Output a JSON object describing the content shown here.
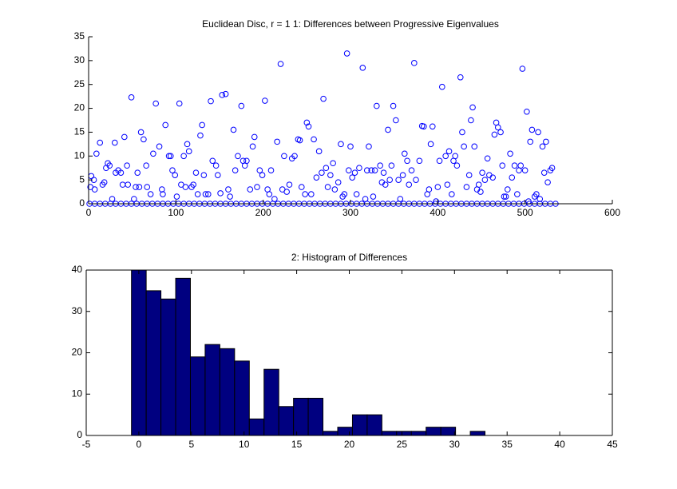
{
  "chart_data": [
    {
      "type": "scatter",
      "title": "Euclidean Disc, r = 1 1: Differences between Progressive Eigenvalues",
      "color": "#0000ff",
      "xlim": [
        0,
        600
      ],
      "ylim": [
        0,
        35
      ],
      "xticks": [
        0,
        100,
        200,
        300,
        400,
        500,
        600
      ],
      "yticks": [
        0,
        5,
        10,
        15,
        20,
        25,
        30,
        35
      ],
      "x": [
        2,
        3,
        6,
        7,
        9,
        13,
        16,
        18,
        20,
        22,
        24,
        27,
        30,
        31,
        34,
        37,
        39,
        41,
        44,
        45,
        49,
        52,
        54,
        56,
        58,
        60,
        63,
        66,
        67,
        71,
        74,
        77,
        81,
        84,
        85,
        88,
        92,
        94,
        96,
        99,
        101,
        104,
        106,
        109,
        111,
        113,
        115,
        118,
        120,
        123,
        125,
        128,
        130,
        132,
        134,
        137,
        140,
        142,
        146,
        148,
        151,
        153,
        157,
        160,
        162,
        166,
        168,
        171,
        175,
        177,
        179,
        181,
        185,
        188,
        190,
        193,
        196,
        199,
        202,
        205,
        207,
        209,
        213,
        216,
        220,
        222,
        224,
        227,
        230,
        233,
        236,
        240,
        242,
        244,
        248,
        250,
        252,
        255,
        258,
        261,
        264,
        267,
        269,
        272,
        274,
        277,
        280,
        282,
        286,
        289,
        291,
        293,
        296,
        298,
        300,
        302,
        305,
        307,
        310,
        314,
        317,
        319,
        321,
        324,
        326,
        328,
        330,
        334,
        336,
        338,
        340,
        343,
        345,
        347,
        349,
        352,
        355,
        357,
        360,
        362,
        365,
        367,
        370,
        373,
        375,
        379,
        382,
        384,
        388,
        390,
        392,
        394,
        398,
        400,
        402,
        405,
        409,
        411,
        413,
        416,
        418,
        420,
        422,
        426,
        428,
        430,
        433,
        436,
        438,
        440,
        442,
        445,
        447,
        449,
        451,
        454,
        457,
        459,
        463,
        465,
        467,
        469,
        472,
        474,
        476,
        478,
        480,
        483,
        485,
        488,
        491,
        493,
        495,
        497,
        500,
        502,
        504,
        506,
        508,
        511,
        513,
        515,
        517,
        520,
        522,
        524,
        526,
        529,
        531,
        1,
        7,
        13,
        19,
        25,
        31,
        37,
        43,
        49,
        55,
        61,
        67,
        73,
        79,
        85,
        91,
        97,
        103,
        109,
        115,
        121,
        127,
        133,
        139,
        145,
        151,
        157,
        163,
        169,
        175,
        181,
        187,
        193,
        199,
        205,
        211,
        217,
        223,
        229,
        235,
        241,
        247,
        253,
        259,
        265,
        271,
        277,
        283,
        289,
        295,
        301,
        307,
        313,
        319,
        325,
        331,
        337,
        343,
        349,
        355,
        361,
        367,
        373,
        379,
        385,
        391,
        397,
        403,
        409,
        415,
        421,
        427,
        433,
        439,
        445,
        451,
        457,
        463,
        469,
        475,
        481,
        487,
        493,
        499,
        505,
        511,
        517,
        523,
        529,
        535
      ],
      "values": [
        3.5,
        5.8,
        5,
        3,
        10.5,
        12.8,
        4,
        4.5,
        7.5,
        8.5,
        8,
        1,
        12.8,
        6.5,
        7,
        6.5,
        4,
        14,
        8,
        4,
        22.3,
        1,
        3.5,
        6.5,
        3.5,
        15,
        13.5,
        8,
        3.5,
        2,
        10.5,
        21,
        12,
        3,
        2,
        16.5,
        10,
        10,
        7,
        6,
        1.5,
        21,
        4,
        10,
        3.5,
        12.5,
        11,
        3.5,
        4,
        6.5,
        2,
        14.3,
        16.5,
        6,
        2,
        2,
        21.5,
        9,
        8,
        6,
        2.2,
        22.8,
        23,
        3,
        1.5,
        15.5,
        7,
        10,
        20.5,
        9,
        8,
        9,
        3,
        12,
        14,
        3.5,
        7,
        6,
        21.6,
        3,
        2,
        7,
        1,
        13,
        29.3,
        3,
        10,
        2.5,
        4,
        9.5,
        10,
        13.5,
        13.3,
        3.5,
        2,
        17,
        16.2,
        2,
        13.5,
        5.5,
        11,
        6.5,
        22,
        7.5,
        3.5,
        6,
        8.5,
        3,
        4.5,
        12.5,
        1.5,
        2,
        31.5,
        7,
        12,
        5.5,
        6.5,
        2,
        7.5,
        28.5,
        1,
        7,
        12,
        7,
        1.5,
        7,
        20.5,
        8,
        4.5,
        6.5,
        4,
        15.5,
        5,
        8,
        20.5,
        17.5,
        5,
        1,
        6,
        10.5,
        9,
        4,
        7,
        29.5,
        5,
        9,
        16.3,
        16.2,
        2,
        3,
        12.5,
        16.2,
        0.5,
        3.5,
        9,
        24.5,
        10,
        4,
        11,
        2,
        9,
        10,
        8,
        26.5,
        15,
        12,
        3.5,
        6,
        17.5,
        20.2,
        12,
        3,
        4,
        2.5,
        6.5,
        5,
        9.5,
        6,
        5.5,
        14.5,
        17,
        16,
        15,
        8,
        1.5,
        1.5,
        3,
        10.5,
        5.5,
        8,
        2,
        7,
        8,
        28.3,
        7,
        19.3,
        0.5,
        13,
        15.5,
        1.5,
        2,
        15,
        1,
        12,
        6.5,
        13,
        4.5,
        7,
        7.5,
        0,
        0,
        0,
        0,
        0,
        0,
        0,
        0,
        0,
        0,
        0,
        0,
        0,
        0,
        0,
        0,
        0,
        0,
        0,
        0,
        0,
        0,
        0,
        0,
        0,
        0,
        0,
        0,
        0,
        0,
        0,
        0,
        0,
        0,
        0,
        0,
        0,
        0,
        0,
        0,
        0,
        0,
        0,
        0,
        0,
        0,
        0,
        0,
        0,
        0,
        0,
        0,
        0,
        0,
        0,
        0,
        0,
        0,
        0,
        0,
        0,
        0,
        0,
        0,
        0,
        0,
        0,
        0,
        0,
        0,
        0,
        0,
        0,
        0,
        0,
        0,
        0,
        0,
        0,
        0,
        0,
        0,
        0,
        0,
        0,
        0,
        0,
        0,
        0,
        0
      ]
    },
    {
      "type": "histogram",
      "title": "2: Histogram of Differences",
      "color": "#000080",
      "xlim": [
        -5,
        45
      ],
      "ylim": [
        0,
        40
      ],
      "xticks": [
        -5,
        0,
        5,
        10,
        15,
        20,
        25,
        30,
        35,
        40,
        45
      ],
      "yticks": [
        0,
        10,
        20,
        30,
        40
      ],
      "bins": [
        -0.7,
        0.7,
        2.1,
        3.5,
        4.9,
        6.3,
        7.7,
        9.1,
        10.5,
        11.9,
        13.3,
        14.7,
        16.1,
        17.5,
        18.9,
        20.3,
        21.7,
        23.1,
        24.5,
        25.9,
        27.3,
        28.7,
        30.1,
        31.5,
        32.9
      ],
      "values": [
        40,
        35,
        33,
        38,
        19,
        22,
        21,
        18,
        4,
        16,
        7,
        9,
        9,
        1,
        2,
        5,
        5,
        1,
        1,
        1,
        2,
        2,
        0,
        1
      ]
    }
  ]
}
